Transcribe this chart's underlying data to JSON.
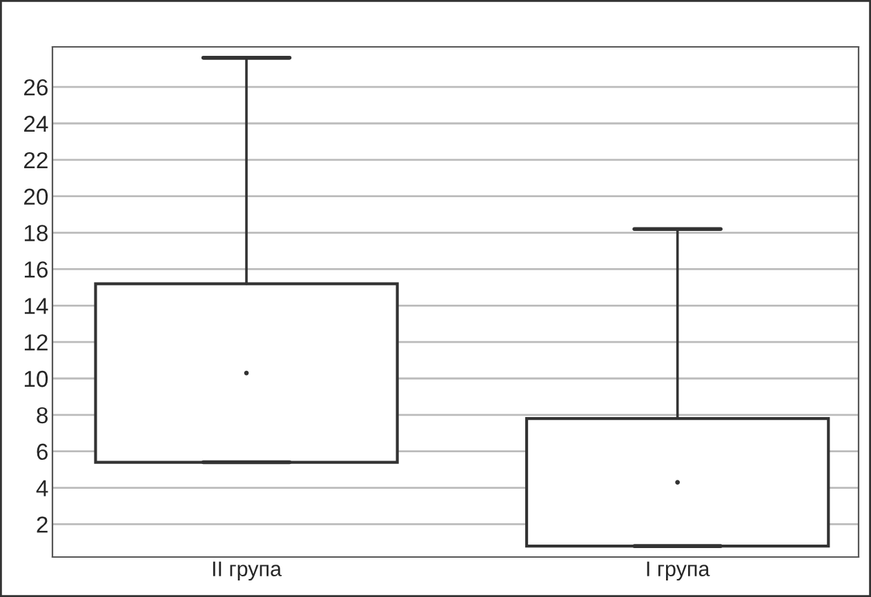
{
  "chart_data": {
    "type": "box",
    "categories": [
      "II група",
      "I група"
    ],
    "boxes": [
      {
        "low": 5.4,
        "q1": 5.4,
        "median": 10.3,
        "q3": 15.2,
        "high": 27.6
      },
      {
        "low": 0.8,
        "q1": 0.8,
        "median": 4.3,
        "q3": 7.8,
        "high": 18.2
      }
    ],
    "ylim": [
      0.2,
      28.2
    ],
    "yticks": [
      2,
      4,
      6,
      8,
      10,
      12,
      14,
      16,
      18,
      20,
      22,
      24,
      26
    ],
    "grid": "y"
  }
}
